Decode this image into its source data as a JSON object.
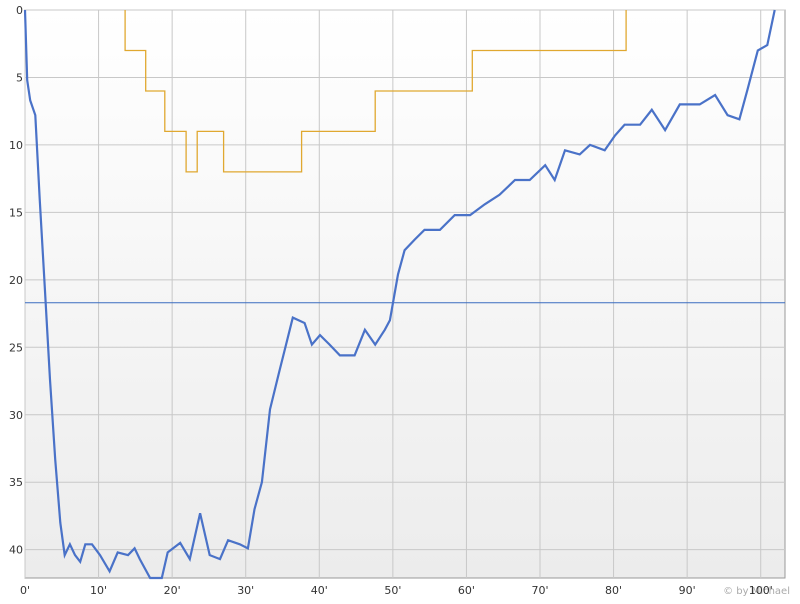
{
  "chart_data": {
    "type": "line",
    "xlim": [
      0,
      103.3
    ],
    "ylim": [
      0,
      42.1
    ],
    "y_inverted": true,
    "grid": true,
    "xticks": [
      {
        "value": 0,
        "label": "0'"
      },
      {
        "value": 10,
        "label": "10'"
      },
      {
        "value": 20,
        "label": "20'"
      },
      {
        "value": 30,
        "label": "30'"
      },
      {
        "value": 40,
        "label": "40'"
      },
      {
        "value": 50,
        "label": "50'"
      },
      {
        "value": 60,
        "label": "60'"
      },
      {
        "value": 70,
        "label": "70'"
      },
      {
        "value": 80,
        "label": "80'"
      },
      {
        "value": 90,
        "label": "90'"
      },
      {
        "value": 100,
        "label": "100'"
      }
    ],
    "yticks": [
      0,
      5,
      10,
      15,
      20,
      25,
      30,
      35,
      40
    ],
    "series": [
      {
        "color": "#4a72c8",
        "x": [
          0,
          0.3,
          0.7,
          1.4,
          2,
          2.7,
          3.4,
          4.1,
          4.8,
          5.4,
          6.1,
          6.8,
          7.5,
          8.2,
          9.1,
          10.2,
          11.5,
          12.6,
          14,
          14.9,
          15.6,
          17,
          18.6,
          19.4,
          21.1,
          22.4,
          23.8,
          25.1,
          26.5,
          27.6,
          29.2,
          30.3,
          31.2,
          32.2,
          33.3,
          34.6,
          35.3,
          36.4,
          38,
          39,
          40.1,
          41.4,
          42.8,
          44.8,
          46.2,
          47.6,
          48.9,
          49.6,
          50.7,
          51.6,
          53,
          54.3,
          56.4,
          58.4,
          60.5,
          62.5,
          64.5,
          66.6,
          68.6,
          70.7,
          72,
          73.4,
          75.4,
          76.8,
          78.8,
          80.2,
          81.5,
          83.6,
          85.2,
          87,
          89,
          91.7,
          93.8,
          95.5,
          97.1,
          98.2,
          99.6,
          100.9,
          101.9
        ],
        "values": [
          0,
          5.2,
          6.7,
          7.8,
          14,
          20.7,
          27.4,
          33.3,
          38,
          40.4,
          39.6,
          40.4,
          40.9,
          39.6,
          39.6,
          40.4,
          41.6,
          40.2,
          40.4,
          39.9,
          40.7,
          42.1,
          42.1,
          40.2,
          39.5,
          40.7,
          37.3,
          40.4,
          40.7,
          39.3,
          39.6,
          39.9,
          37,
          35,
          29.6,
          26.7,
          25.2,
          22.8,
          23.2,
          24.8,
          24.1,
          24.8,
          25.6,
          25.6,
          23.7,
          24.8,
          23.7,
          23,
          19.6,
          17.8,
          17,
          16.3,
          16.3,
          15.2,
          15.2,
          14.4,
          13.7,
          12.6,
          12.6,
          11.5,
          12.6,
          10.4,
          10.7,
          10,
          10.4,
          9.3,
          8.5,
          8.5,
          7.4,
          8.9,
          7,
          7,
          6.3,
          7.8,
          8.1,
          5.9,
          3,
          2.6,
          0
        ]
      },
      {
        "color": "#e0a830",
        "x": [
          13.6,
          13.6,
          16.4,
          16.4,
          19,
          19,
          21.9,
          21.9,
          23.4,
          23.4,
          27,
          27,
          37.6,
          37.6,
          47.6,
          47.6,
          60.8,
          60.8,
          81.7,
          81.7
        ],
        "values": [
          0,
          3,
          3,
          6,
          6,
          9,
          9,
          12,
          12,
          9,
          9,
          12,
          12,
          9,
          9,
          6,
          6,
          3,
          3,
          0
        ]
      }
    ],
    "reference_lines": [
      {
        "value": 21.7,
        "color": "#3a6cc0"
      }
    ],
    "watermark": "© by Michael"
  }
}
